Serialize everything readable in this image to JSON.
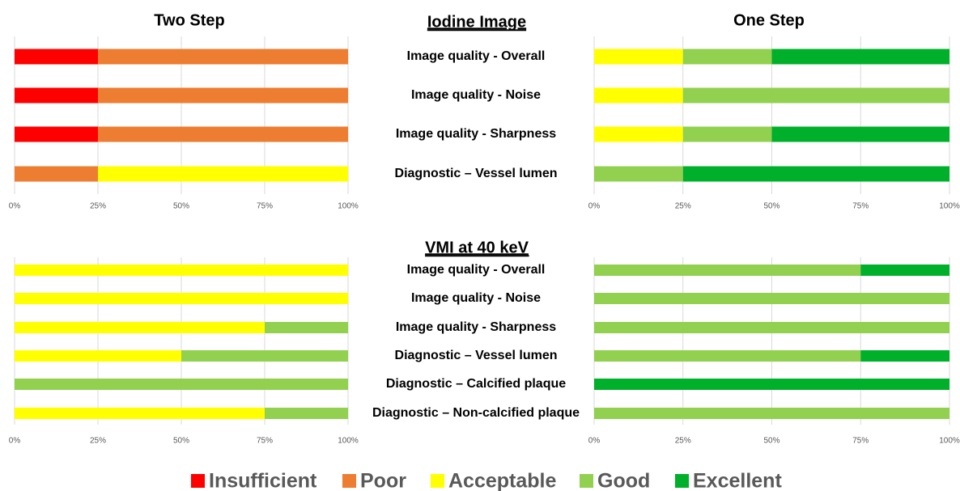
{
  "group_titles": [
    "Iodine Image",
    "VMI at 40 keV"
  ],
  "chart_data": [
    {
      "type": "stacked_bar",
      "title": "Two Step",
      "categories": [
        "Image quality - Overall",
        "Image quality - Noise",
        "Image quality - Sharpness",
        "Diagnostic – Vessel lumen"
      ],
      "series": [
        {
          "name": "Insufficient",
          "color": "#ff0000",
          "values": [
            25,
            25,
            25,
            0
          ]
        },
        {
          "name": "Poor",
          "color": "#ed7d31",
          "values": [
            75,
            75,
            75,
            25
          ]
        },
        {
          "name": "Acceptable",
          "color": "#ffff00",
          "values": [
            0,
            0,
            0,
            75
          ]
        },
        {
          "name": "Good",
          "color": "#92d050",
          "values": [
            0,
            0,
            0,
            0
          ]
        },
        {
          "name": "Excellent",
          "color": "#00b02a",
          "values": [
            0,
            0,
            0,
            0
          ]
        }
      ],
      "xlim": [
        0,
        100
      ],
      "xticks": [
        {
          "value": 0,
          "label": "0%"
        },
        {
          "value": 25,
          "label": "25%"
        },
        {
          "value": 50,
          "label": "50%"
        },
        {
          "value": 75,
          "label": "75%"
        },
        {
          "value": 100,
          "label": "100%"
        }
      ],
      "grid": true
    },
    {
      "type": "stacked_bar",
      "title": "One Step",
      "series": [
        {
          "name": "Insufficient",
          "color": "#ff0000",
          "values": [
            0,
            0,
            0,
            0
          ]
        },
        {
          "name": "Poor",
          "color": "#ed7d31",
          "values": [
            0,
            0,
            0,
            0
          ]
        },
        {
          "name": "Acceptable",
          "color": "#ffff00",
          "values": [
            25,
            25,
            25,
            0
          ]
        },
        {
          "name": "Good",
          "color": "#92d050",
          "values": [
            25,
            75,
            25,
            25
          ]
        },
        {
          "name": "Excellent",
          "color": "#00b02a",
          "values": [
            50,
            0,
            50,
            75
          ]
        }
      ],
      "xlim": [
        0,
        100
      ],
      "xticks": [
        {
          "value": 0,
          "label": "0%"
        },
        {
          "value": 25,
          "label": "25%"
        },
        {
          "value": 50,
          "label": "50%"
        },
        {
          "value": 75,
          "label": "75%"
        },
        {
          "value": 100,
          "label": "100%"
        }
      ],
      "grid": true
    },
    {
      "type": "stacked_bar",
      "categories": [
        "Image quality - Overall",
        "Image quality - Noise",
        "Image quality - Sharpness",
        "Diagnostic – Vessel lumen",
        "Diagnostic – Calcified plaque",
        "Diagnostic – Non-calcified plaque"
      ],
      "series": [
        {
          "name": "Insufficient",
          "color": "#ff0000",
          "values": [
            0,
            0,
            0,
            0,
            0,
            0
          ]
        },
        {
          "name": "Poor",
          "color": "#ed7d31",
          "values": [
            0,
            0,
            0,
            0,
            0,
            0
          ]
        },
        {
          "name": "Acceptable",
          "color": "#ffff00",
          "values": [
            100,
            100,
            75,
            50,
            0,
            75
          ]
        },
        {
          "name": "Good",
          "color": "#92d050",
          "values": [
            0,
            0,
            25,
            50,
            100,
            25
          ]
        },
        {
          "name": "Excellent",
          "color": "#00b02a",
          "values": [
            0,
            0,
            0,
            0,
            0,
            0
          ]
        }
      ],
      "xlim": [
        0,
        100
      ],
      "xticks": [
        {
          "value": 0,
          "label": "0%"
        },
        {
          "value": 25,
          "label": "25%"
        },
        {
          "value": 50,
          "label": "50%"
        },
        {
          "value": 75,
          "label": "75%"
        },
        {
          "value": 100,
          "label": "100%"
        }
      ],
      "grid": true
    },
    {
      "type": "stacked_bar",
      "series": [
        {
          "name": "Insufficient",
          "color": "#ff0000",
          "values": [
            0,
            0,
            0,
            0,
            0,
            0
          ]
        },
        {
          "name": "Poor",
          "color": "#ed7d31",
          "values": [
            0,
            0,
            0,
            0,
            0,
            0
          ]
        },
        {
          "name": "Acceptable",
          "color": "#ffff00",
          "values": [
            0,
            0,
            0,
            0,
            0,
            0
          ]
        },
        {
          "name": "Good",
          "color": "#92d050",
          "values": [
            75,
            100,
            100,
            75,
            0,
            100
          ]
        },
        {
          "name": "Excellent",
          "color": "#00b02a",
          "values": [
            25,
            0,
            0,
            25,
            100,
            0
          ]
        }
      ],
      "xlim": [
        0,
        100
      ],
      "xticks": [
        {
          "value": 0,
          "label": "0%"
        },
        {
          "value": 25,
          "label": "25%"
        },
        {
          "value": 50,
          "label": "50%"
        },
        {
          "value": 75,
          "label": "75%"
        },
        {
          "value": 100,
          "label": "100%"
        }
      ],
      "grid": true
    }
  ]
}
